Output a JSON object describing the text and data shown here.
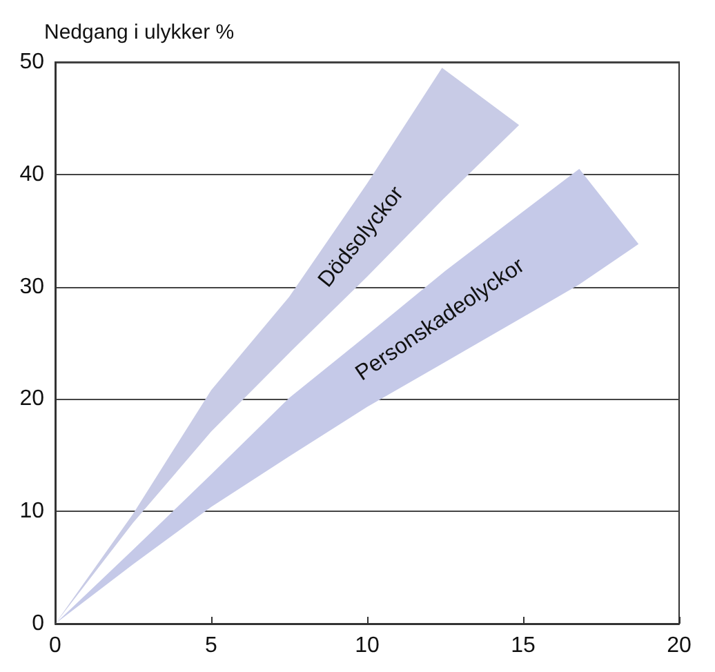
{
  "chart_data": {
    "type": "area",
    "ylabel": "Nedgang i ulykker %",
    "xlim": [
      0,
      20
    ],
    "xticks": [
      0,
      5,
      10,
      15,
      20
    ],
    "ylim": [
      0,
      50
    ],
    "yticks": [
      0,
      10,
      20,
      30,
      40,
      50
    ],
    "grid": "y",
    "legend": false,
    "series": [
      {
        "name": "Dödsolyckor",
        "color": "#c8cbe6",
        "x": [
          0,
          2.5,
          5,
          7.5,
          10,
          12.4,
          14.87,
          12.4,
          10,
          7.5,
          5,
          2.5
        ],
        "values": [
          0,
          9.8,
          20.8,
          29.1,
          39.2,
          49.5,
          44.4,
          37.7,
          30.9,
          24.1,
          17.1,
          9
        ]
      },
      {
        "name": "Personskadeolyckor",
        "color": "#c5c9e8",
        "x": [
          0,
          2.5,
          5,
          7.5,
          10,
          12.5,
          15,
          16.8,
          18.7,
          16.8,
          15,
          12.5,
          10,
          7.5,
          5,
          2.5
        ],
        "values": [
          0,
          6.6,
          13.3,
          20.1,
          25.7,
          31.4,
          36.7,
          40.5,
          33.8,
          30.2,
          27.3,
          23.3,
          19.3,
          14.9,
          10.4,
          5.3
        ]
      }
    ]
  }
}
